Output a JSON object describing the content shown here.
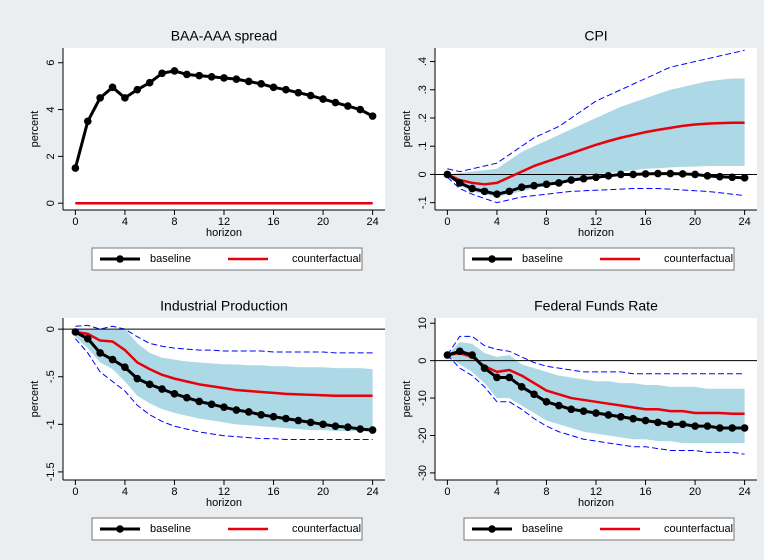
{
  "chart_data": [
    {
      "type": "line",
      "title": "BAA-AAA spread",
      "xlabel": "horizon",
      "ylabel": "percent",
      "x": [
        0,
        1,
        2,
        3,
        4,
        5,
        6,
        7,
        8,
        9,
        10,
        11,
        12,
        13,
        14,
        15,
        16,
        17,
        18,
        19,
        20,
        21,
        22,
        23,
        24
      ],
      "xlim": [
        -1,
        25
      ],
      "xticks": [
        0,
        4,
        8,
        12,
        16,
        20,
        24
      ],
      "ylim": [
        -0.29,
        6.63
      ],
      "yticks": [
        0,
        2,
        4,
        6
      ],
      "legend": "bottom",
      "band": {
        "color": "#add8e6",
        "lower": [
          0,
          0,
          0,
          0,
          0,
          0,
          0,
          0,
          0,
          0,
          0,
          0,
          0,
          0,
          0,
          0,
          0,
          0,
          0,
          0,
          0,
          0,
          0,
          0,
          0
        ],
        "upper": [
          0,
          0,
          0,
          0,
          0,
          0,
          0,
          0,
          0,
          0,
          0,
          0,
          0,
          0,
          0,
          0,
          0,
          0,
          0,
          0,
          0,
          0,
          0,
          0,
          0
        ]
      },
      "bounds": {
        "color": "#0000ff",
        "lower": [
          0,
          0,
          0,
          0,
          0,
          0,
          0,
          0,
          0,
          0,
          0,
          0,
          0,
          0,
          0,
          0,
          0,
          0,
          0,
          0,
          0,
          0,
          0,
          0,
          0
        ],
        "upper": [
          0,
          0,
          0,
          0,
          0,
          0,
          0,
          0,
          0,
          0,
          0,
          0,
          0,
          0,
          0,
          0,
          0,
          0,
          0,
          0,
          0,
          0,
          0,
          0,
          0
        ]
      },
      "series": [
        {
          "name": "baseline",
          "color": "#000000",
          "marker": "circle",
          "values": [
            1.5,
            3.5,
            4.5,
            4.95,
            4.5,
            4.85,
            5.15,
            5.55,
            5.65,
            5.5,
            5.45,
            5.4,
            5.35,
            5.3,
            5.2,
            5.1,
            4.95,
            4.85,
            4.72,
            4.6,
            4.45,
            4.3,
            4.15,
            4.0,
            3.72
          ]
        },
        {
          "name": "counterfactual",
          "color": "#e8000b",
          "values": [
            0,
            0,
            0,
            0,
            0,
            0,
            0,
            0,
            0,
            0,
            0,
            0,
            0,
            0,
            0,
            0,
            0,
            0,
            0,
            0,
            0,
            0,
            0,
            0,
            0
          ]
        }
      ]
    },
    {
      "type": "line",
      "title": "CPI",
      "xlabel": "horizon",
      "ylabel": "percent",
      "x": [
        0,
        1,
        2,
        3,
        4,
        5,
        6,
        7,
        8,
        9,
        10,
        11,
        12,
        13,
        14,
        15,
        16,
        17,
        18,
        19,
        20,
        21,
        22,
        23,
        24
      ],
      "xlim": [
        -1,
        25
      ],
      "xticks": [
        0,
        4,
        8,
        12,
        16,
        20,
        24
      ],
      "ylim": [
        -0.126,
        0.448
      ],
      "yticks": [
        {
          "value": -0.1,
          "label": "-.1"
        },
        0,
        {
          "value": 0.1,
          "label": ".1"
        },
        {
          "value": 0.2,
          "label": ".2"
        },
        {
          "value": 0.3,
          "label": ".3"
        },
        {
          "value": 0.4,
          "label": ".4"
        }
      ],
      "hline": 0,
      "legend": "bottom",
      "band": {
        "color": "#add8e6",
        "lower": [
          0,
          -0.04,
          -0.06,
          -0.07,
          -0.08,
          -0.07,
          -0.06,
          -0.05,
          -0.04,
          -0.03,
          -0.02,
          -0.01,
          0,
          0.005,
          0.01,
          0.015,
          0.02,
          0.022,
          0.025,
          0.027,
          0.028,
          0.03,
          0.03,
          0.03,
          0.03
        ],
        "upper": [
          0,
          0.005,
          0.01,
          0.015,
          0.02,
          0.05,
          0.08,
          0.1,
          0.12,
          0.14,
          0.16,
          0.18,
          0.2,
          0.22,
          0.24,
          0.255,
          0.27,
          0.285,
          0.3,
          0.31,
          0.32,
          0.33,
          0.335,
          0.34,
          0.34
        ]
      },
      "bounds": {
        "color": "#0000ff",
        "lower": [
          -0.01,
          -0.05,
          -0.07,
          -0.085,
          -0.1,
          -0.09,
          -0.08,
          -0.075,
          -0.07,
          -0.065,
          -0.06,
          -0.058,
          -0.056,
          -0.054,
          -0.052,
          -0.05,
          -0.05,
          -0.05,
          -0.052,
          -0.055,
          -0.058,
          -0.06,
          -0.065,
          -0.07,
          -0.075
        ],
        "upper": [
          0.02,
          0.01,
          0.02,
          0.03,
          0.04,
          0.07,
          0.1,
          0.13,
          0.15,
          0.17,
          0.2,
          0.23,
          0.26,
          0.28,
          0.3,
          0.32,
          0.34,
          0.36,
          0.38,
          0.39,
          0.4,
          0.41,
          0.42,
          0.43,
          0.44
        ]
      },
      "series": [
        {
          "name": "baseline",
          "color": "#000000",
          "marker": "circle",
          "values": [
            0,
            -0.03,
            -0.05,
            -0.06,
            -0.07,
            -0.06,
            -0.045,
            -0.04,
            -0.035,
            -0.03,
            -0.02,
            -0.015,
            -0.01,
            -0.005,
            0,
            0,
            0.002,
            0.003,
            0.003,
            0.002,
            0,
            -0.005,
            -0.008,
            -0.01,
            -0.012
          ]
        },
        {
          "name": "counterfactual",
          "color": "#e8000b",
          "values": [
            0,
            -0.02,
            -0.03,
            -0.035,
            -0.03,
            -0.01,
            0.01,
            0.03,
            0.045,
            0.06,
            0.075,
            0.09,
            0.105,
            0.118,
            0.13,
            0.14,
            0.15,
            0.158,
            0.165,
            0.172,
            0.177,
            0.18,
            0.182,
            0.183,
            0.183
          ]
        }
      ]
    },
    {
      "type": "line",
      "title": "Industrial Production",
      "xlabel": "horizon",
      "ylabel": "percent",
      "x": [
        0,
        1,
        2,
        3,
        4,
        5,
        6,
        7,
        8,
        9,
        10,
        11,
        12,
        13,
        14,
        15,
        16,
        17,
        18,
        19,
        20,
        21,
        22,
        23,
        24
      ],
      "xlim": [
        -1,
        25
      ],
      "xticks": [
        0,
        4,
        8,
        12,
        16,
        20,
        24
      ],
      "ylim": [
        -1.585,
        0.117
      ],
      "yticks": [
        {
          "value": -1.5,
          "label": "-1.5"
        },
        -1,
        {
          "value": -0.5,
          "label": "-.5"
        },
        0
      ],
      "hline": 0,
      "legend": "bottom",
      "band": {
        "color": "#add8e6",
        "lower": [
          -0.08,
          -0.2,
          -0.35,
          -0.42,
          -0.55,
          -0.7,
          -0.78,
          -0.84,
          -0.88,
          -0.91,
          -0.94,
          -0.96,
          -0.98,
          -1.0,
          -1.01,
          -1.02,
          -1.03,
          -1.04,
          -1.05,
          -1.06,
          -1.06,
          -1.07,
          -1.07,
          -1.07,
          -1.08
        ],
        "upper": [
          0,
          0,
          0,
          -0.01,
          0,
          -0.15,
          -0.25,
          -0.3,
          -0.32,
          -0.34,
          -0.35,
          -0.36,
          -0.37,
          -0.37,
          -0.38,
          -0.38,
          -0.39,
          -0.39,
          -0.4,
          -0.4,
          -0.4,
          -0.41,
          -0.41,
          -0.41,
          -0.42
        ]
      },
      "bounds": {
        "color": "#0000ff",
        "lower": [
          -0.1,
          -0.25,
          -0.45,
          -0.55,
          -0.65,
          -0.8,
          -0.9,
          -0.97,
          -1.02,
          -1.05,
          -1.08,
          -1.1,
          -1.12,
          -1.13,
          -1.14,
          -1.15,
          -1.15,
          -1.16,
          -1.16,
          -1.16,
          -1.16,
          -1.16,
          -1.16,
          -1.16,
          -1.16
        ],
        "upper": [
          0.03,
          0.04,
          0,
          0.03,
          0,
          -0.08,
          -0.15,
          -0.18,
          -0.2,
          -0.21,
          -0.22,
          -0.22,
          -0.23,
          -0.23,
          -0.23,
          -0.23,
          -0.24,
          -0.24,
          -0.24,
          -0.24,
          -0.24,
          -0.25,
          -0.25,
          -0.25,
          -0.25
        ]
      },
      "series": [
        {
          "name": "baseline",
          "color": "#000000",
          "marker": "circle",
          "values": [
            -0.03,
            -0.1,
            -0.25,
            -0.32,
            -0.4,
            -0.52,
            -0.58,
            -0.63,
            -0.68,
            -0.72,
            -0.76,
            -0.79,
            -0.82,
            -0.85,
            -0.87,
            -0.9,
            -0.92,
            -0.94,
            -0.96,
            -0.98,
            -1.0,
            -1.02,
            -1.03,
            -1.05,
            -1.06
          ]
        },
        {
          "name": "counterfactual",
          "color": "#e8000b",
          "values": [
            -0.03,
            -0.05,
            -0.12,
            -0.13,
            -0.22,
            -0.35,
            -0.42,
            -0.48,
            -0.52,
            -0.55,
            -0.58,
            -0.6,
            -0.62,
            -0.64,
            -0.65,
            -0.66,
            -0.67,
            -0.68,
            -0.685,
            -0.69,
            -0.695,
            -0.7,
            -0.7,
            -0.7,
            -0.7
          ]
        }
      ]
    },
    {
      "type": "line",
      "title": "Federal Funds Rate",
      "xlabel": "horizon",
      "ylabel": "percent",
      "x": [
        0,
        1,
        2,
        3,
        4,
        5,
        6,
        7,
        8,
        9,
        10,
        11,
        12,
        13,
        14,
        15,
        16,
        17,
        18,
        19,
        20,
        21,
        22,
        23,
        24
      ],
      "xlim": [
        -1,
        25
      ],
      "xticks": [
        0,
        4,
        8,
        12,
        16,
        20,
        24
      ],
      "ylim": [
        -31.9,
        11.4
      ],
      "yticks": [
        -30,
        -20,
        -10,
        0,
        10
      ],
      "hline": 0,
      "legend": "bottom",
      "band": {
        "color": "#add8e6",
        "lower": [
          1.5,
          -1,
          -3,
          -6,
          -10,
          -10,
          -12,
          -14,
          -16,
          -17,
          -18,
          -19,
          -19.5,
          -20,
          -20.5,
          -21,
          -21,
          -21.5,
          -21.5,
          -22,
          -22,
          -22,
          -22,
          -22,
          -22
        ],
        "upper": [
          1.5,
          5,
          4.5,
          2,
          1,
          1.5,
          -1,
          -2,
          -3,
          -4,
          -4.5,
          -5,
          -5.5,
          -5.5,
          -6,
          -6,
          -6.5,
          -6.5,
          -7,
          -7,
          -7,
          -7.5,
          -7.5,
          -7.5,
          -7.5
        ]
      },
      "bounds": {
        "color": "#0000ff",
        "lower": [
          1.5,
          -2,
          -4,
          -7,
          -11,
          -11,
          -13,
          -15.5,
          -17.5,
          -19,
          -20,
          -21,
          -21.5,
          -22,
          -22.5,
          -23,
          -23,
          -23.5,
          -24,
          -24,
          -24,
          -24.5,
          -24.5,
          -24.5,
          -25
        ],
        "upper": [
          1.5,
          6.5,
          6.5,
          4,
          3,
          2.5,
          1,
          -0.5,
          -1.5,
          -2,
          -2.5,
          -3,
          -3,
          -3,
          -3,
          -3.5,
          -3.5,
          -3.5,
          -3.5,
          -3.5,
          -3.5,
          -3.5,
          -3.5,
          -3.5,
          -3.5
        ]
      },
      "series": [
        {
          "name": "baseline",
          "color": "#000000",
          "marker": "circle",
          "values": [
            1.5,
            2.5,
            1.5,
            -2,
            -4.5,
            -4.5,
            -7,
            -9,
            -11,
            -12,
            -13,
            -13.5,
            -14,
            -14.5,
            -15,
            -15.5,
            -16,
            -16.5,
            -17,
            -17,
            -17.5,
            -17.5,
            -18,
            -18,
            -18
          ]
        },
        {
          "name": "counterfactual",
          "color": "#e8000b",
          "values": [
            1.5,
            2,
            1,
            -1.5,
            -3,
            -2.5,
            -4,
            -6,
            -8,
            -9,
            -10,
            -10.5,
            -11,
            -11.5,
            -12,
            -12.5,
            -13,
            -13,
            -13.5,
            -13.5,
            -14,
            -14,
            -14,
            -14.2,
            -14.2
          ]
        }
      ]
    }
  ]
}
